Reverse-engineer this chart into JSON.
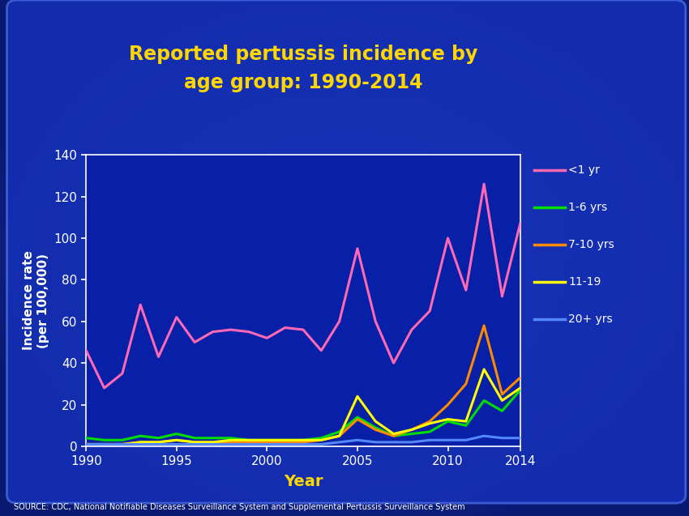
{
  "title_line1": "Reported pertussis incidence by",
  "title_line2": "age group: 1990-2014",
  "title_color": "#FFD700",
  "xlabel": "Year",
  "ylabel": "Incidence rate\n(per 100,000)",
  "xlabel_color": "#FFD700",
  "ylabel_color": "white",
  "source_text": "SOURCE: CDC, National Notifiable Diseases Surveillance System and Supplemental Pertussis Surveillance System",
  "bg_outer": "#1040b0",
  "bg_inner": "#0a28a0",
  "bg_plot": "#0820a8",
  "axis_color": "white",
  "tick_color": "white",
  "ylim": [
    0,
    140
  ],
  "xlim": [
    1990,
    2014
  ],
  "yticks": [
    0,
    20,
    40,
    60,
    80,
    100,
    120,
    140
  ],
  "xticks": [
    1990,
    1995,
    2000,
    2005,
    2010,
    2014
  ],
  "years": [
    1990,
    1991,
    1992,
    1993,
    1994,
    1995,
    1996,
    1997,
    1998,
    1999,
    2000,
    2001,
    2002,
    2003,
    2004,
    2005,
    2006,
    2007,
    2008,
    2009,
    2010,
    2011,
    2012,
    2013,
    2014
  ],
  "series": {
    "<1 yr": {
      "color": "#FF69B4",
      "data": [
        46,
        28,
        35,
        68,
        43,
        62,
        50,
        55,
        56,
        55,
        52,
        57,
        56,
        46,
        60,
        95,
        60,
        40,
        56,
        65,
        100,
        75,
        126,
        72,
        107
      ]
    },
    "1-6 yrs": {
      "color": "#00DD00",
      "data": [
        4,
        3,
        3,
        5,
        4,
        6,
        4,
        4,
        4,
        3,
        3,
        3,
        3,
        4,
        7,
        14,
        9,
        5,
        6,
        7,
        12,
        10,
        22,
        17,
        27
      ]
    },
    "7-10 yrs": {
      "color": "#FF8C00",
      "data": [
        1,
        1,
        1,
        2,
        2,
        3,
        2,
        2,
        2,
        2,
        2,
        2,
        2,
        3,
        5,
        13,
        8,
        5,
        8,
        12,
        20,
        30,
        58,
        25,
        33
      ]
    },
    "11-19": {
      "color": "#FFFF00",
      "data": [
        1,
        1,
        1,
        2,
        2,
        3,
        2,
        2,
        3,
        3,
        3,
        3,
        3,
        3,
        5,
        24,
        12,
        6,
        8,
        11,
        13,
        12,
        37,
        22,
        28
      ]
    },
    "20+ yrs": {
      "color": "#5588FF",
      "data": [
        1,
        1,
        1,
        1,
        1,
        1,
        1,
        1,
        1,
        1,
        1,
        1,
        1,
        1,
        2,
        3,
        2,
        2,
        2,
        3,
        3,
        3,
        5,
        4,
        4
      ]
    }
  }
}
